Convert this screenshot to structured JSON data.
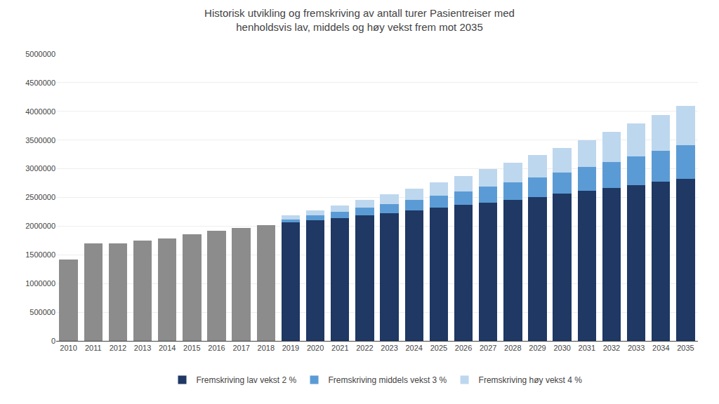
{
  "chart_data": {
    "type": "bar",
    "title": "Historisk utvikling og fremskriving av antall turer Pasientreiser med\nhenholdsvis lav, middels og høy vekst frem mot 2035",
    "categories": [
      "2010",
      "2011",
      "2012",
      "2013",
      "2014",
      "2015",
      "2016",
      "2017",
      "2018",
      "2019",
      "2020",
      "2021",
      "2022",
      "2023",
      "2024",
      "2025",
      "2026",
      "2027",
      "2028",
      "2029",
      "2030",
      "2031",
      "2032",
      "2033",
      "2034",
      "2035"
    ],
    "series": [
      {
        "color": "#8c8c8c",
        "values": [
          1420000,
          1700000,
          1700000,
          1750000,
          1790000,
          1860000,
          1920000,
          1970000,
          2020000,
          0,
          0,
          0,
          0,
          0,
          0,
          0,
          0,
          0,
          0,
          0,
          0,
          0,
          0,
          0,
          0,
          0
        ]
      },
      {
        "name": "Fremskriving lav vekst 2 %",
        "color": "#1f3864",
        "values": [
          0,
          0,
          0,
          0,
          0,
          0,
          0,
          0,
          0,
          2060000,
          2100000,
          2143000,
          2186000,
          2230000,
          2275000,
          2320000,
          2366000,
          2414000,
          2462000,
          2511000,
          2562000,
          2613000,
          2665000,
          2718000,
          2773000,
          2828000
        ]
      },
      {
        "name": "Fremskriving middels vekst 3 %",
        "color": "#5b9bd5",
        "values": [
          0,
          0,
          0,
          0,
          0,
          0,
          0,
          0,
          0,
          60000,
          85000,
          107000,
          132000,
          158000,
          185000,
          214000,
          244000,
          274000,
          307000,
          341000,
          376000,
          413000,
          452000,
          493000,
          534000,
          578000
        ]
      },
      {
        "name": "Fremskriving høy vekst 4 %",
        "color": "#bdd7ee",
        "values": [
          0,
          0,
          0,
          0,
          0,
          0,
          0,
          0,
          0,
          65000,
          87000,
          113000,
          140000,
          168000,
          198000,
          230000,
          265000,
          302000,
          341000,
          382000,
          426000,
          473000,
          522000,
          573000,
          629000,
          687000
        ]
      }
    ],
    "stacked": true,
    "ylim": [
      0,
      5000000
    ],
    "yticks": [
      0,
      500000,
      1000000,
      1500000,
      2000000,
      2500000,
      3000000,
      3500000,
      4000000,
      4500000,
      5000000
    ],
    "grid": true,
    "legend": "bottom"
  }
}
